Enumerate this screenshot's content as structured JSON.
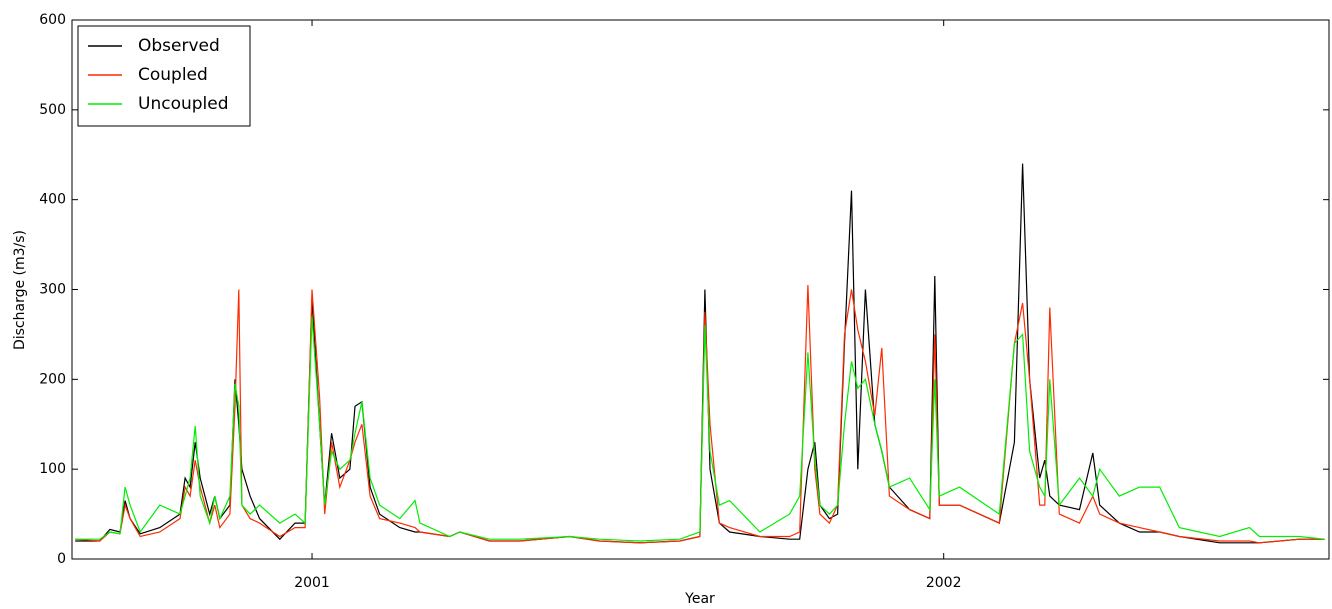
{
  "chart_data": {
    "type": "line",
    "xlabel": "Year",
    "ylabel": "Discharge (m3/s)",
    "x": [
      2000.625,
      2000.664,
      2000.68,
      2000.696,
      2000.704,
      2000.712,
      2000.728,
      2000.759,
      2000.791,
      2000.799,
      2000.807,
      2000.815,
      2000.823,
      2000.838,
      2000.846,
      2000.854,
      2000.87,
      2000.878,
      2000.884,
      2000.889,
      2000.902,
      2000.917,
      2000.949,
      2000.973,
      2000.989,
      2001.0,
      2001.012,
      2001.02,
      2001.031,
      2001.044,
      2001.06,
      2001.068,
      2001.079,
      2001.092,
      2001.107,
      2001.139,
      2001.163,
      2001.171,
      2001.218,
      2001.234,
      2001.281,
      2001.329,
      2001.408,
      2001.455,
      2001.519,
      2001.582,
      2001.614,
      2001.622,
      2001.63,
      2001.645,
      2001.661,
      2001.709,
      2001.756,
      2001.772,
      2001.785,
      2001.796,
      2001.804,
      2001.819,
      2001.832,
      2001.843,
      2001.854,
      2001.864,
      2001.876,
      2001.891,
      2001.902,
      2001.914,
      2001.946,
      2001.978,
      2001.986,
      2001.993,
      2002.025,
      2002.088,
      2002.112,
      2002.125,
      2002.136,
      2002.152,
      2002.16,
      2002.168,
      2002.183,
      2002.215,
      2002.236,
      2002.247,
      2002.278,
      2002.31,
      2002.342,
      2002.373,
      2002.437,
      2002.484,
      2002.5,
      2002.563,
      2002.603
    ],
    "series": [
      {
        "name": "Observed",
        "color": "#000000",
        "values": [
          20,
          20,
          33,
          30,
          65,
          45,
          28,
          35,
          50,
          90,
          80,
          130,
          90,
          50,
          70,
          45,
          60,
          200,
          150,
          100,
          70,
          45,
          22,
          40,
          40,
          290,
          150,
          60,
          140,
          90,
          100,
          170,
          175,
          80,
          50,
          35,
          30,
          30,
          25,
          30,
          20,
          20,
          25,
          20,
          18,
          20,
          25,
          300,
          100,
          40,
          30,
          25,
          22,
          22,
          100,
          130,
          60,
          45,
          50,
          240,
          410,
          100,
          300,
          150,
          120,
          80,
          55,
          45,
          315,
          60,
          60,
          40,
          130,
          440,
          200,
          90,
          110,
          70,
          60,
          55,
          118,
          60,
          40,
          30,
          30,
          25,
          18,
          18,
          18,
          22,
          22
        ]
      },
      {
        "name": "Coupled",
        "color": "#ff2a00",
        "values": [
          22,
          20,
          30,
          28,
          60,
          45,
          25,
          30,
          45,
          80,
          70,
          110,
          80,
          40,
          60,
          35,
          50,
          170,
          300,
          60,
          45,
          40,
          25,
          35,
          35,
          300,
          180,
          50,
          130,
          80,
          110,
          130,
          150,
          70,
          45,
          40,
          35,
          30,
          25,
          30,
          20,
          20,
          25,
          20,
          18,
          20,
          25,
          275,
          150,
          40,
          35,
          25,
          25,
          30,
          305,
          100,
          50,
          40,
          60,
          250,
          300,
          255,
          220,
          160,
          235,
          70,
          55,
          45,
          250,
          60,
          60,
          40,
          240,
          285,
          200,
          60,
          60,
          280,
          50,
          40,
          70,
          50,
          40,
          35,
          30,
          25,
          20,
          20,
          18,
          22,
          22
        ]
      },
      {
        "name": "Uncoupled",
        "color": "#00ee00",
        "values": [
          22,
          22,
          30,
          28,
          80,
          60,
          30,
          60,
          50,
          70,
          90,
          148,
          70,
          40,
          70,
          45,
          70,
          195,
          170,
          60,
          50,
          60,
          40,
          50,
          40,
          270,
          150,
          60,
          120,
          100,
          110,
          140,
          175,
          90,
          60,
          45,
          65,
          40,
          25,
          30,
          22,
          22,
          25,
          22,
          20,
          22,
          30,
          260,
          120,
          60,
          65,
          30,
          50,
          70,
          230,
          110,
          60,
          50,
          60,
          150,
          220,
          190,
          200,
          150,
          120,
          80,
          90,
          55,
          200,
          70,
          80,
          50,
          240,
          250,
          120,
          80,
          70,
          200,
          60,
          90,
          70,
          100,
          70,
          80,
          80,
          35,
          25,
          35,
          25,
          25,
          22
        ]
      }
    ],
    "xlim": [
      2000.62,
      2002.61
    ],
    "xticks": [
      2001,
      2002
    ],
    "ylim": [
      0,
      600
    ],
    "yticks": [
      0,
      100,
      200,
      300,
      400,
      500,
      600
    ],
    "grid": false,
    "legend": "upper left"
  }
}
